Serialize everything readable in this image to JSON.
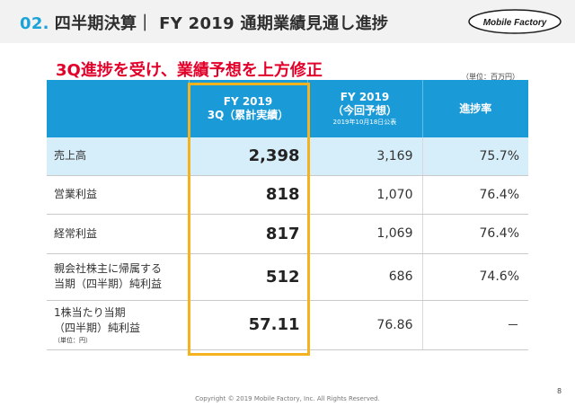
{
  "header": {
    "number": "02.",
    "title": "四半期決算｜ FY 2019 通期業績見通し進捗",
    "logo_text": "Mobile Factory"
  },
  "subtitle": "3Q進捗を受け、業績予想を上方修正",
  "unit_note": "（単位：百万円）",
  "table": {
    "headers": {
      "actual_line1": "FY 2019",
      "actual_line2": "3Q（累計実績）",
      "forecast_line1": "FY 2019",
      "forecast_line2": "（今回予想）",
      "forecast_sub": "2019年10月18日公表",
      "progress": "進捗率"
    },
    "rows": [
      {
        "label_line1": "売上高",
        "label_line2": "",
        "label_note": "",
        "actual": "2,398",
        "forecast": "3,169",
        "progress": "75.7%"
      },
      {
        "label_line1": "営業利益",
        "label_line2": "",
        "label_note": "",
        "actual": "818",
        "forecast": "1,070",
        "progress": "76.4%"
      },
      {
        "label_line1": "経常利益",
        "label_line2": "",
        "label_note": "",
        "actual": "817",
        "forecast": "1,069",
        "progress": "76.4%"
      },
      {
        "label_line1": "親会社株主に帰属する",
        "label_line2": "当期（四半期）純利益",
        "label_note": "",
        "actual": "512",
        "forecast": "686",
        "progress": "74.6%"
      },
      {
        "label_line1": "1株当たり当期",
        "label_line2": "（四半期）純利益",
        "label_note": "（単位：円）",
        "actual": "57.11",
        "forecast": "76.86",
        "progress": "－"
      }
    ]
  },
  "footer": {
    "copyright": "Copyright © 2019 Mobile Factory, Inc. All Rights Reserved.",
    "page": "8"
  },
  "colors": {
    "accent_blue": "#1a9ad6",
    "highlight_orange": "#f5b21f",
    "subtitle_red": "#e2002a",
    "row_highlight": "#d6eef9"
  }
}
